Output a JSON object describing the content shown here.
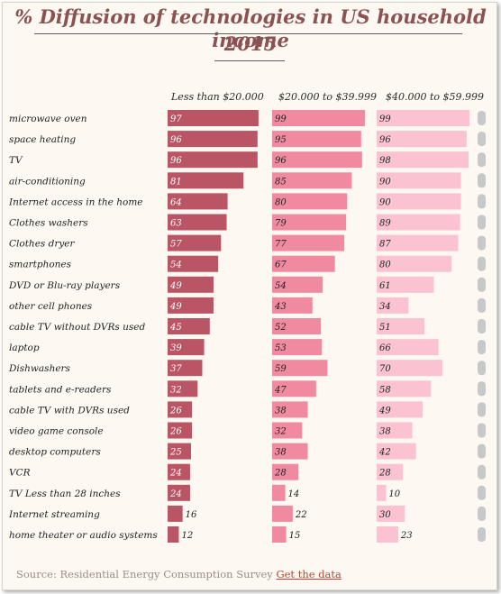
{
  "header": {
    "title_line1": "% Diffusion of technologies in US household income",
    "title_line2": "2015"
  },
  "colors": {
    "series": [
      "#b95565",
      "#f08aa0",
      "#fbc2d2"
    ],
    "page_background": "#fdf8f1",
    "scrollbar": "#c8c8c8",
    "link": "#b04a36"
  },
  "chart_data": {
    "type": "bar",
    "orientation": "horizontal",
    "categories": [
      "microwave oven",
      "space heating",
      "TV",
      "air-conditioning",
      "Internet access in the home",
      "Clothes washers",
      "Clothes dryer",
      "smartphones",
      "DVD or Blu-ray players",
      "other cell phones",
      "cable TV without DVRs used",
      "laptop",
      "Dishwashers",
      "tablets and e-readers",
      "cable TV with DVRs used",
      "video game console",
      "desktop computers",
      "VCR",
      "TV Less than 28 inches",
      "Internet streaming",
      "home theater or audio systems"
    ],
    "series": [
      {
        "name": "Less than $20.000",
        "values": [
          97,
          96,
          96,
          81,
          64,
          63,
          57,
          54,
          49,
          49,
          45,
          39,
          37,
          32,
          26,
          26,
          25,
          24,
          24,
          16,
          12
        ]
      },
      {
        "name": "$20.000 to $39.999",
        "values": [
          99,
          95,
          96,
          85,
          80,
          79,
          77,
          67,
          54,
          43,
          52,
          53,
          59,
          47,
          38,
          32,
          38,
          28,
          14,
          22,
          15
        ]
      },
      {
        "name": "$40.000 to $59.999",
        "values": [
          99,
          96,
          98,
          90,
          90,
          89,
          87,
          80,
          61,
          34,
          51,
          66,
          70,
          58,
          49,
          38,
          42,
          28,
          10,
          30,
          23
        ]
      }
    ],
    "xlim": [
      0,
      100
    ],
    "legend": "column headers above each bar column"
  },
  "footer": {
    "source_label": "Source: Residential Energy Consumption Survey",
    "link_label": "Get the data"
  }
}
